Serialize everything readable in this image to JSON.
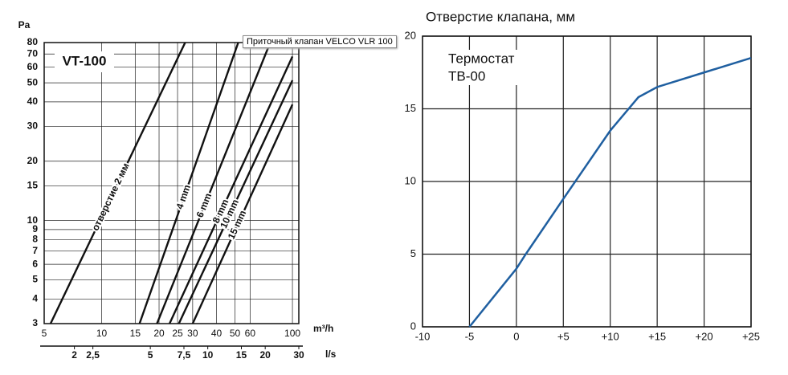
{
  "tooltip": "Приточный клапан VELCO VLR 100",
  "chart_data": [
    {
      "type": "line",
      "title": "VT-100",
      "ylabel": "Pa",
      "xlabel": "m³/h",
      "x2label": "l/s",
      "xscale": "log",
      "yscale": "log",
      "grid": true,
      "color": "#111111",
      "xlim": [
        5,
        108
      ],
      "xticks": [
        5,
        10,
        15,
        20,
        25,
        30,
        40,
        50,
        60,
        100
      ],
      "x2lim": [
        1.389,
        30
      ],
      "x2ticks": [
        2,
        {
          "value": 2.5,
          "label": "2,5"
        },
        5,
        {
          "value": 7.5,
          "label": "7,5"
        },
        10,
        15,
        20,
        30
      ],
      "ylim": [
        3,
        80
      ],
      "yticks": [
        3,
        4,
        5,
        6,
        7,
        8,
        9,
        10,
        15,
        20,
        30,
        40,
        50,
        60,
        70,
        80
      ],
      "series": [
        {
          "name": "отверстие 2 мм",
          "x": [
            5.4,
            27.4
          ],
          "values": [
            3,
            80
          ]
        },
        {
          "name": "4 mm",
          "x": [
            15.8,
            52
          ],
          "values": [
            3,
            80
          ]
        },
        {
          "name": "6 mm",
          "x": [
            19.5,
            76.5
          ],
          "values": [
            3,
            80
          ]
        },
        {
          "name": "8 mm",
          "x": [
            22.7,
            100
          ],
          "values": [
            3,
            68
          ]
        },
        {
          "name": "10 mm",
          "x": [
            25.4,
            100
          ],
          "values": [
            3,
            51.5
          ]
        },
        {
          "name": "15 mm",
          "x": [
            30,
            100
          ],
          "values": [
            3,
            38.8
          ]
        }
      ]
    },
    {
      "type": "line",
      "title": "Отверстие клапана, мм",
      "annotations": [
        "Термостат",
        "ТВ-00"
      ],
      "grid": true,
      "color": "#1f5fa0",
      "xlim": [
        -10,
        25
      ],
      "xticks": [
        -10,
        -5,
        0,
        {
          "value": 5,
          "label": "+5"
        },
        {
          "value": 10,
          "label": "+10"
        },
        {
          "value": 15,
          "label": "+15"
        },
        {
          "value": 20,
          "label": "+20"
        },
        {
          "value": 25,
          "label": "+25"
        }
      ],
      "ylim": [
        0,
        20
      ],
      "yticks": [
        0,
        5,
        10,
        15,
        20
      ],
      "x": [
        -5,
        0,
        1,
        5,
        10,
        13,
        15,
        20,
        25
      ],
      "values": [
        0,
        4,
        5,
        8.8,
        13.5,
        15.8,
        16.5,
        17.5,
        18.5
      ]
    }
  ]
}
